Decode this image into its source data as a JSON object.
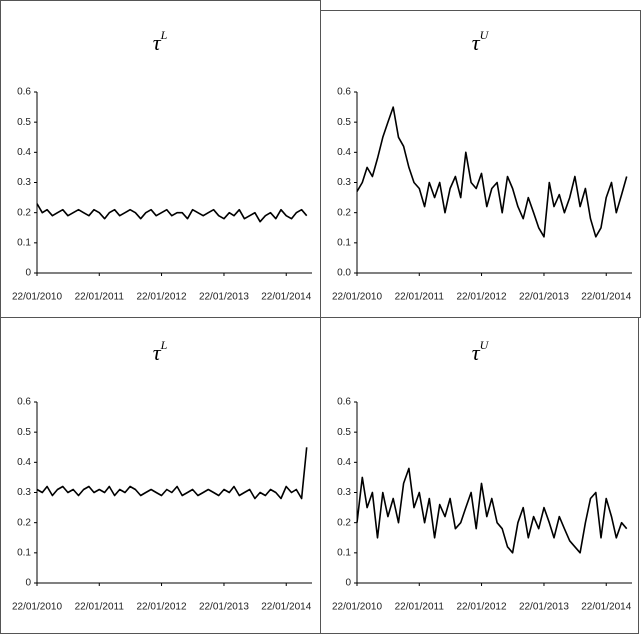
{
  "chart_data": [
    {
      "type": "line",
      "title": "τ",
      "title_sup": "L",
      "color": "#000000",
      "x": [
        "22/01/2010",
        "22/02/2010",
        "22/03/2010",
        "22/04/2010",
        "22/05/2010",
        "22/06/2010",
        "22/07/2010",
        "22/08/2010",
        "22/09/2010",
        "22/10/2010",
        "22/11/2010",
        "22/12/2010",
        "22/01/2011",
        "22/02/2011",
        "22/03/2011",
        "22/04/2011",
        "22/05/2011",
        "22/06/2011",
        "22/07/2011",
        "22/08/2011",
        "22/09/2011",
        "22/10/2011",
        "22/11/2011",
        "22/12/2011",
        "22/01/2012",
        "22/02/2012",
        "22/03/2012",
        "22/04/2012",
        "22/05/2012",
        "22/06/2012",
        "22/07/2012",
        "22/08/2012",
        "22/09/2012",
        "22/10/2012",
        "22/11/2012",
        "22/12/2012",
        "22/01/2013",
        "22/02/2013",
        "22/03/2013",
        "22/04/2013",
        "22/05/2013",
        "22/06/2013",
        "22/07/2013",
        "22/08/2013",
        "22/09/2013",
        "22/10/2013",
        "22/11/2013",
        "22/12/2013",
        "22/01/2014",
        "22/02/2014",
        "22/03/2014",
        "22/04/2014",
        "22/05/2014"
      ],
      "values": [
        0.23,
        0.2,
        0.21,
        0.19,
        0.2,
        0.21,
        0.19,
        0.2,
        0.21,
        0.2,
        0.19,
        0.21,
        0.2,
        0.18,
        0.2,
        0.21,
        0.19,
        0.2,
        0.21,
        0.2,
        0.18,
        0.2,
        0.21,
        0.19,
        0.2,
        0.21,
        0.19,
        0.2,
        0.2,
        0.18,
        0.21,
        0.2,
        0.19,
        0.2,
        0.21,
        0.19,
        0.18,
        0.2,
        0.19,
        0.21,
        0.18,
        0.19,
        0.2,
        0.17,
        0.19,
        0.2,
        0.18,
        0.21,
        0.19,
        0.18,
        0.2,
        0.21,
        0.19
      ],
      "xlim": [
        "22/01/2010",
        "22/06/2014"
      ],
      "xticks": [
        "22/01/2010",
        "22/01/2011",
        "22/01/2012",
        "22/01/2013",
        "22/01/2014"
      ],
      "ylim": [
        0,
        0.6
      ],
      "yticks": [
        0,
        0.1,
        0.2,
        0.3,
        0.4,
        0.5,
        0.6
      ]
    },
    {
      "type": "line",
      "title": "τ",
      "title_sup": "U",
      "color": "#000000",
      "x": [
        "22/01/2010",
        "22/02/2010",
        "22/03/2010",
        "22/04/2010",
        "22/05/2010",
        "22/06/2010",
        "22/07/2010",
        "22/08/2010",
        "22/09/2010",
        "22/10/2010",
        "22/11/2010",
        "22/12/2010",
        "22/01/2011",
        "22/02/2011",
        "22/03/2011",
        "22/04/2011",
        "22/05/2011",
        "22/06/2011",
        "22/07/2011",
        "22/08/2011",
        "22/09/2011",
        "22/10/2011",
        "22/11/2011",
        "22/12/2011",
        "22/01/2012",
        "22/02/2012",
        "22/03/2012",
        "22/04/2012",
        "22/05/2012",
        "22/06/2012",
        "22/07/2012",
        "22/08/2012",
        "22/09/2012",
        "22/10/2012",
        "22/11/2012",
        "22/12/2012",
        "22/01/2013",
        "22/02/2013",
        "22/03/2013",
        "22/04/2013",
        "22/05/2013",
        "22/06/2013",
        "22/07/2013",
        "22/08/2013",
        "22/09/2013",
        "22/10/2013",
        "22/11/2013",
        "22/12/2013",
        "22/01/2014",
        "22/02/2014",
        "22/03/2014",
        "22/04/2014",
        "22/05/2014"
      ],
      "values": [
        0.27,
        0.3,
        0.35,
        0.32,
        0.38,
        0.45,
        0.5,
        0.55,
        0.45,
        0.42,
        0.35,
        0.3,
        0.28,
        0.22,
        0.3,
        0.25,
        0.3,
        0.2,
        0.28,
        0.32,
        0.25,
        0.4,
        0.3,
        0.28,
        0.33,
        0.22,
        0.28,
        0.3,
        0.2,
        0.32,
        0.28,
        0.22,
        0.18,
        0.25,
        0.2,
        0.15,
        0.12,
        0.3,
        0.22,
        0.26,
        0.2,
        0.25,
        0.32,
        0.22,
        0.28,
        0.18,
        0.12,
        0.15,
        0.25,
        0.3,
        0.2,
        0.26,
        0.32
      ],
      "xlim": [
        "22/01/2010",
        "22/06/2014"
      ],
      "xticks": [
        "22/01/2010",
        "22/01/2011",
        "22/01/2012",
        "22/01/2013",
        "22/01/2014"
      ],
      "ylim": [
        0,
        0.6
      ],
      "yticks": [
        {
          "value": 0,
          "label": "0.0"
        },
        0.1,
        0.2,
        0.3,
        0.4,
        0.5,
        0.6
      ]
    },
    {
      "type": "line",
      "title": "τ",
      "title_sup": "L",
      "color": "#000000",
      "x": [
        "22/01/2010",
        "22/02/2010",
        "22/03/2010",
        "22/04/2010",
        "22/05/2010",
        "22/06/2010",
        "22/07/2010",
        "22/08/2010",
        "22/09/2010",
        "22/10/2010",
        "22/11/2010",
        "22/12/2010",
        "22/01/2011",
        "22/02/2011",
        "22/03/2011",
        "22/04/2011",
        "22/05/2011",
        "22/06/2011",
        "22/07/2011",
        "22/08/2011",
        "22/09/2011",
        "22/10/2011",
        "22/11/2011",
        "22/12/2011",
        "22/01/2012",
        "22/02/2012",
        "22/03/2012",
        "22/04/2012",
        "22/05/2012",
        "22/06/2012",
        "22/07/2012",
        "22/08/2012",
        "22/09/2012",
        "22/10/2012",
        "22/11/2012",
        "22/12/2012",
        "22/01/2013",
        "22/02/2013",
        "22/03/2013",
        "22/04/2013",
        "22/05/2013",
        "22/06/2013",
        "22/07/2013",
        "22/08/2013",
        "22/09/2013",
        "22/10/2013",
        "22/11/2013",
        "22/12/2013",
        "22/01/2014",
        "22/02/2014",
        "22/03/2014",
        "22/04/2014",
        "22/05/2014"
      ],
      "values": [
        0.31,
        0.3,
        0.32,
        0.29,
        0.31,
        0.32,
        0.3,
        0.31,
        0.29,
        0.31,
        0.32,
        0.3,
        0.31,
        0.3,
        0.32,
        0.29,
        0.31,
        0.3,
        0.32,
        0.31,
        0.29,
        0.3,
        0.31,
        0.3,
        0.29,
        0.31,
        0.3,
        0.32,
        0.29,
        0.3,
        0.31,
        0.29,
        0.3,
        0.31,
        0.3,
        0.29,
        0.31,
        0.3,
        0.32,
        0.29,
        0.3,
        0.31,
        0.28,
        0.3,
        0.29,
        0.31,
        0.3,
        0.28,
        0.32,
        0.3,
        0.31,
        0.28,
        0.45
      ],
      "xlim": [
        "22/01/2010",
        "22/06/2014"
      ],
      "xticks": [
        "22/01/2010",
        "22/01/2011",
        "22/01/2012",
        "22/01/2013",
        "22/01/2014"
      ],
      "ylim": [
        0,
        0.6
      ],
      "yticks": [
        0,
        0.1,
        0.2,
        0.3,
        0.4,
        0.5,
        0.6
      ]
    },
    {
      "type": "line",
      "title": "τ",
      "title_sup": "U",
      "color": "#000000",
      "x": [
        "22/01/2010",
        "22/02/2010",
        "22/03/2010",
        "22/04/2010",
        "22/05/2010",
        "22/06/2010",
        "22/07/2010",
        "22/08/2010",
        "22/09/2010",
        "22/10/2010",
        "22/11/2010",
        "22/12/2010",
        "22/01/2011",
        "22/02/2011",
        "22/03/2011",
        "22/04/2011",
        "22/05/2011",
        "22/06/2011",
        "22/07/2011",
        "22/08/2011",
        "22/09/2011",
        "22/10/2011",
        "22/11/2011",
        "22/12/2011",
        "22/01/2012",
        "22/02/2012",
        "22/03/2012",
        "22/04/2012",
        "22/05/2012",
        "22/06/2012",
        "22/07/2012",
        "22/08/2012",
        "22/09/2012",
        "22/10/2012",
        "22/11/2012",
        "22/12/2012",
        "22/01/2013",
        "22/02/2013",
        "22/03/2013",
        "22/04/2013",
        "22/05/2013",
        "22/06/2013",
        "22/07/2013",
        "22/08/2013",
        "22/09/2013",
        "22/10/2013",
        "22/11/2013",
        "22/12/2013",
        "22/01/2014",
        "22/02/2014",
        "22/03/2014",
        "22/04/2014",
        "22/05/2014"
      ],
      "values": [
        0.2,
        0.35,
        0.25,
        0.3,
        0.15,
        0.3,
        0.22,
        0.28,
        0.2,
        0.33,
        0.38,
        0.25,
        0.3,
        0.2,
        0.28,
        0.15,
        0.26,
        0.22,
        0.28,
        0.18,
        0.2,
        0.25,
        0.3,
        0.18,
        0.33,
        0.22,
        0.28,
        0.2,
        0.18,
        0.12,
        0.1,
        0.2,
        0.25,
        0.15,
        0.22,
        0.18,
        0.25,
        0.2,
        0.15,
        0.22,
        0.18,
        0.14,
        0.12,
        0.1,
        0.2,
        0.28,
        0.3,
        0.15,
        0.28,
        0.22,
        0.15,
        0.2,
        0.18
      ],
      "xlim": [
        "22/01/2010",
        "22/06/2014"
      ],
      "xticks": [
        "22/01/2010",
        "22/01/2011",
        "22/01/2012",
        "22/01/2013",
        "22/01/2014"
      ],
      "ylim": [
        0,
        0.6
      ],
      "yticks": [
        0,
        0.1,
        0.2,
        0.3,
        0.4,
        0.5,
        0.6
      ]
    }
  ]
}
